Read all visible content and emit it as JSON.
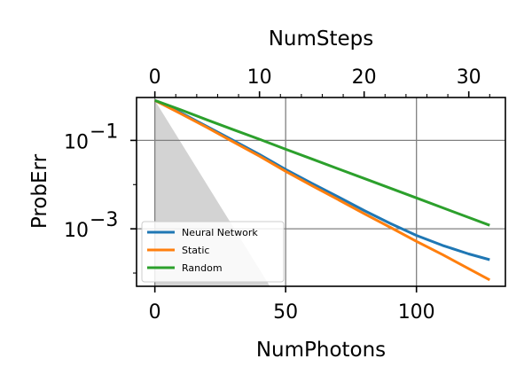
{
  "chart_data": {
    "type": "line",
    "title": "",
    "xlabel": "NumPhotons",
    "ylabel": "ProbErr",
    "x2label": "NumSteps",
    "xlim": [
      -7,
      134
    ],
    "ylim_log10": [
      -4.3,
      -0.03
    ],
    "y_scale": "log",
    "grid": true,
    "legend_position": "lower-left",
    "x_ticks": [
      0,
      50,
      100
    ],
    "x_tick_labels": [
      "0",
      "50",
      "100"
    ],
    "x2_ticks": [
      0,
      10,
      20,
      30
    ],
    "x2_tick_labels": [
      "0",
      "10",
      "20",
      "30"
    ],
    "x2_units_per_x": 0.25,
    "y_ticks_log10": [
      -1,
      -3
    ],
    "y_tick_bases": [
      "10",
      "10"
    ],
    "y_tick_exponents": [
      "−1",
      "−3"
    ],
    "shaded_region": {
      "color": "#d3d3d3",
      "points": [
        [
          0,
          0.8
        ],
        [
          0,
          5e-05
        ],
        [
          44,
          5e-05
        ]
      ]
    },
    "series": [
      {
        "name": "Neural Network",
        "color": "#1f77b4",
        "x": [
          0,
          10,
          20,
          30,
          40,
          50,
          60,
          70,
          80,
          90,
          100,
          110,
          120,
          128
        ],
        "y": [
          0.8,
          0.42,
          0.205,
          0.1,
          0.048,
          0.022,
          0.0107,
          0.0053,
          0.0026,
          0.00132,
          0.00071,
          0.00042,
          0.00027,
          0.0002
        ]
      },
      {
        "name": "Static",
        "color": "#ff7f0e",
        "x": [
          0,
          10,
          20,
          30,
          40,
          50,
          60,
          70,
          80,
          90,
          100,
          110,
          120,
          128
        ],
        "y": [
          0.8,
          0.4,
          0.195,
          0.092,
          0.044,
          0.02,
          0.0095,
          0.0046,
          0.0022,
          0.00108,
          0.00052,
          0.00026,
          0.000125,
          7e-05
        ]
      },
      {
        "name": "Random",
        "color": "#2ca02c",
        "x": [
          0,
          10,
          20,
          30,
          40,
          50,
          60,
          70,
          80,
          90,
          100,
          110,
          120,
          128
        ],
        "y": [
          0.8,
          0.49,
          0.29,
          0.175,
          0.106,
          0.063,
          0.038,
          0.0228,
          0.0138,
          0.0083,
          0.005,
          0.003,
          0.0018,
          0.0012
        ]
      }
    ]
  }
}
